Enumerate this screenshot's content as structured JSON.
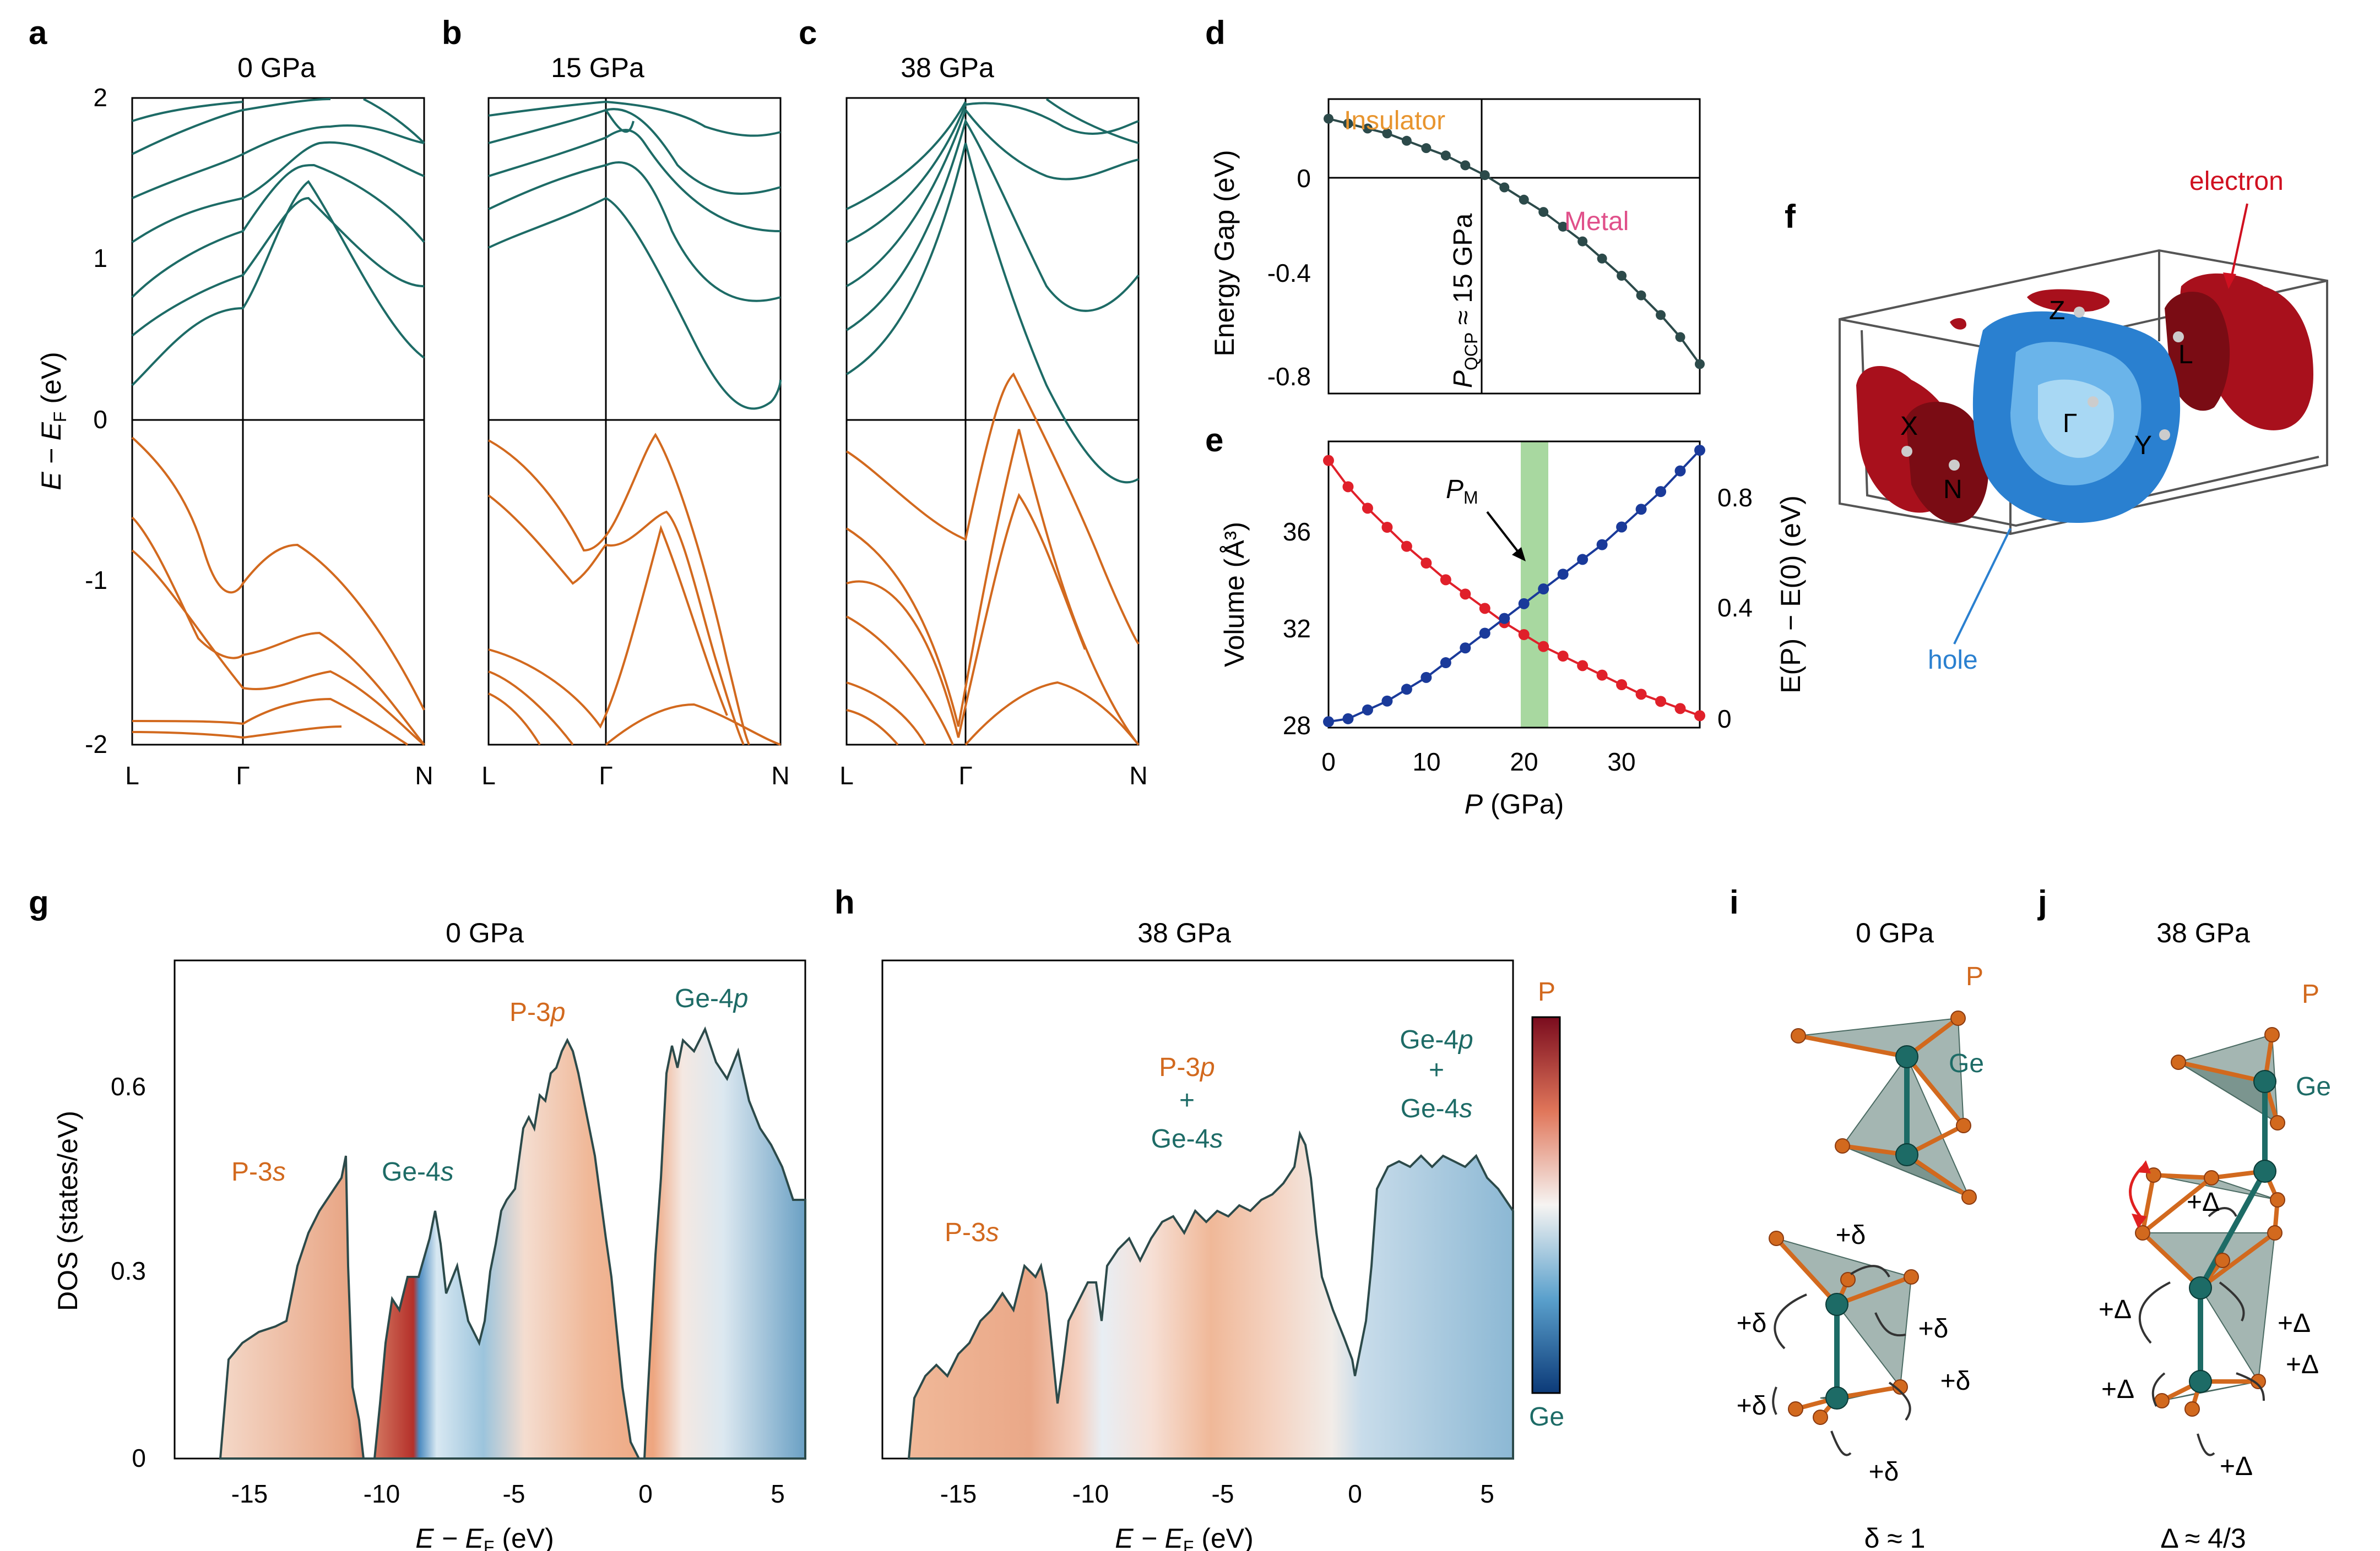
{
  "panels": {
    "a": {
      "label": "a",
      "title": "0 GPa"
    },
    "b": {
      "label": "b",
      "title": "15 GPa"
    },
    "c": {
      "label": "c",
      "title": "38 GPa"
    },
    "d": {
      "label": "d"
    },
    "e": {
      "label": "e"
    },
    "f": {
      "label": "f"
    },
    "g": {
      "label": "g",
      "title": "0 GPa"
    },
    "h": {
      "label": "h",
      "title": "38 GPa"
    },
    "i": {
      "label": "i",
      "title": "0 GPa",
      "caption": "δ ≈ 1"
    },
    "j": {
      "label": "j",
      "title": "38 GPa",
      "caption": "Δ ≈ 4/3"
    }
  },
  "bands": {
    "ylabel_main": "E − E",
    "ylabel_sub": "F",
    "ylabel_unit": " (eV)",
    "yticks": [
      "2",
      "1",
      "0",
      "-1",
      "-2"
    ],
    "kpoints": [
      "L",
      "Γ",
      "N"
    ],
    "colors": {
      "conduction": "#1d6b66",
      "valence": "#d2691e"
    }
  },
  "gap": {
    "ylabel": "Energy Gap (eV)",
    "yticks": [
      "0",
      "-0.4",
      "-0.8"
    ],
    "insulator": "Insulator",
    "metal": "Metal",
    "qcp_main": "P",
    "qcp_sub": "QCP",
    "qcp_rest": " ≈ 15 GPa",
    "colors": {
      "insulator": "#e8952f",
      "metal": "#e0508a",
      "line": "#2c4a4a"
    }
  },
  "eos": {
    "ylabel_left": "Volume (Å³)",
    "ylabel_right": "E(P) − E(0) (eV)",
    "xlabel_main": "P",
    "xlabel_rest": " (GPa)",
    "xticks": [
      "0",
      "10",
      "20",
      "30"
    ],
    "yticks_left": [
      "36",
      "32",
      "28"
    ],
    "yticks_right": [
      "0.8",
      "0.4",
      "0"
    ],
    "pm_main": "P",
    "pm_sub": "M",
    "colors": {
      "volume": "#e0202a",
      "energy": "#1a3a9a",
      "band": "#a8d8a0"
    }
  },
  "fermi": {
    "electron": "electron",
    "hole": "hole",
    "points": [
      "Z",
      "L",
      "Γ",
      "Y",
      "X",
      "N"
    ],
    "colors": {
      "electron": "#b0101c",
      "hole": "#2a80d0"
    }
  },
  "dos": {
    "ylabel": "DOS (states/eV)",
    "xlabel_main": "E − E",
    "xlabel_sub": "F",
    "xlabel_unit": " (eV)",
    "yticks": [
      "0.6",
      "0.3",
      "0"
    ],
    "xticks_g": [
      "-15",
      "-10",
      "-5",
      "0",
      "5"
    ],
    "xticks_h": [
      "-15",
      "-10",
      "-5",
      "0",
      "5"
    ],
    "g_labels": {
      "p3s": "P-3",
      "p3s_it": "s",
      "ge4s": "Ge-4",
      "ge4s_it": "s",
      "p3p": "P-3",
      "p3p_it": "p",
      "ge4p": "Ge-4",
      "ge4p_it": "p"
    },
    "h_labels": {
      "p3s": "P-3",
      "p3s_it": "s",
      "p3p": "P-3",
      "p3p_it": "p",
      "plus": "+",
      "ge4s": "Ge-4",
      "ge4s_it": "s",
      "ge4p": "Ge-4",
      "ge4p_it": "p"
    },
    "colorbar_top": "P",
    "colorbar_bottom": "Ge",
    "colors": {
      "p": "#d2691e",
      "ge": "#1d6b66"
    }
  },
  "structure": {
    "p_label": "P",
    "ge_label": "Ge",
    "delta": "+δ",
    "Delta": "+Δ"
  },
  "chart_data": [
    {
      "type": "line",
      "id": "gap",
      "title": "",
      "xlabel": "P (GPa)",
      "ylabel": "Energy Gap (eV)",
      "x": [
        0,
        2,
        4,
        6,
        8,
        10,
        12,
        14,
        16,
        18,
        20,
        22,
        24,
        26,
        28,
        30,
        32,
        34,
        36,
        38
      ],
      "series": [
        {
          "name": "Energy Gap",
          "values": [
            0.22,
            0.2,
            0.18,
            0.16,
            0.13,
            0.1,
            0.07,
            0.03,
            -0.01,
            -0.06,
            -0.11,
            -0.16,
            -0.22,
            -0.28,
            -0.35,
            -0.42,
            -0.5,
            -0.58,
            -0.67,
            -0.78
          ]
        }
      ],
      "xlim": [
        0,
        38
      ],
      "ylim": [
        -0.9,
        0.3
      ]
    },
    {
      "type": "line",
      "id": "eos",
      "xlabel": "P (GPa)",
      "ylabel": "Volume (Å³)",
      "ylabel_right": "E(P) − E(0) (eV)",
      "x": [
        0,
        2,
        4,
        6,
        8,
        10,
        12,
        14,
        16,
        18,
        20,
        22,
        24,
        26,
        28,
        30,
        32,
        34,
        36,
        38
      ],
      "series": [
        {
          "name": "Volume",
          "axis": "left",
          "values": [
            38.7,
            37.6,
            36.7,
            35.9,
            35.1,
            34.4,
            33.7,
            33.1,
            32.5,
            31.9,
            31.4,
            30.9,
            30.5,
            30.1,
            29.7,
            29.3,
            28.9,
            28.6,
            28.3,
            28.0
          ]
        },
        {
          "name": "E(P) − E(0)",
          "axis": "right",
          "values": [
            0.0,
            0.01,
            0.04,
            0.07,
            0.11,
            0.15,
            0.2,
            0.25,
            0.3,
            0.35,
            0.4,
            0.45,
            0.5,
            0.55,
            0.6,
            0.66,
            0.72,
            0.78,
            0.85,
            0.92
          ]
        }
      ],
      "xlim": [
        0,
        38
      ],
      "ylim_left": [
        27.5,
        39.5
      ],
      "ylim_right": [
        -0.02,
        0.95
      ],
      "highlight_band": [
        20,
        22
      ]
    }
  ]
}
